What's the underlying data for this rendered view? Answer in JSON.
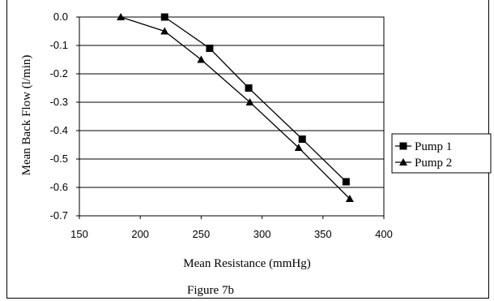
{
  "chart_data": {
    "type": "line",
    "title": "",
    "xlabel": "Mean Resistance (mmHg)",
    "ylabel": "Mean Back Flow (l/min)",
    "xlim": [
      150,
      400
    ],
    "ylim": [
      -0.7,
      0.0
    ],
    "x_ticks": [
      "150",
      "200",
      "250",
      "300",
      "350",
      "400"
    ],
    "y_ticks": [
      "0.0",
      "-0.1",
      "-0.2",
      "-0.3",
      "-0.4",
      "-0.5",
      "-0.6",
      "-0.7"
    ],
    "grid": "horizontal",
    "legend_position": "right",
    "series": [
      {
        "name": "Pump 1",
        "marker": "square",
        "color": "#000000",
        "x": [
          220,
          257,
          289,
          333,
          369
        ],
        "y": [
          0.0,
          -0.11,
          -0.25,
          -0.43,
          -0.58
        ]
      },
      {
        "name": "Pump 2",
        "marker": "triangle",
        "color": "#000000",
        "x": [
          184,
          220,
          250,
          290,
          330,
          372
        ],
        "y": [
          0.0,
          -0.05,
          -0.15,
          -0.3,
          -0.46,
          -0.64
        ]
      }
    ],
    "caption": "Figure 7b"
  }
}
